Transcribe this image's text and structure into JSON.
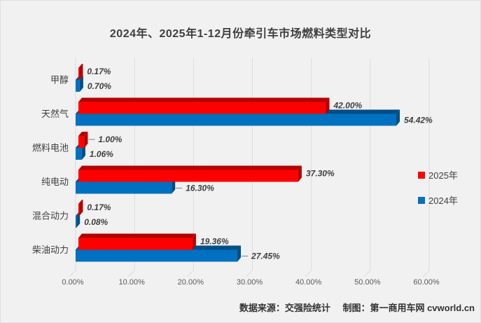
{
  "chart_data": {
    "type": "bar",
    "orientation": "horizontal",
    "style": "3d",
    "title": "2024年、2025年1-12月份牵引车市场燃料类型对比",
    "categories": [
      "甲醇",
      "天然气",
      "燃料电池",
      "纯电动",
      "混合动力",
      "柴油动力"
    ],
    "series": [
      {
        "name": "2025年",
        "color": "#fe0000",
        "dark_color": "#b50000",
        "points": [
          {
            "value": 0.17,
            "label": "0.17%",
            "leader": false
          },
          {
            "value": 42.0,
            "label": "42.00%",
            "leader": false
          },
          {
            "value": 1.0,
            "label": "1.00%",
            "leader": true
          },
          {
            "value": 37.3,
            "label": "37.30%",
            "leader": false
          },
          {
            "value": 0.17,
            "label": "0.17%",
            "leader": false
          },
          {
            "value": 19.36,
            "label": "19.36%",
            "leader": false
          }
        ]
      },
      {
        "name": "2024年",
        "color": "#0070c0",
        "dark_color": "#004e86",
        "points": [
          {
            "value": 0.7,
            "label": "0.70%",
            "leader": false
          },
          {
            "value": 54.42,
            "label": "54.42%",
            "leader": false
          },
          {
            "value": 1.06,
            "label": "1.06%",
            "leader": false
          },
          {
            "value": 16.3,
            "label": "16.30%",
            "leader": true
          },
          {
            "value": 0.08,
            "label": "0.08%",
            "leader": false
          },
          {
            "value": 27.45,
            "label": "27.45%",
            "leader": true
          }
        ]
      }
    ],
    "x_ticks": [
      "0.00%",
      "10.00%",
      "20.00%",
      "30.00%",
      "40.00%",
      "50.00%",
      "60.00%"
    ],
    "xlim": [
      0,
      60
    ],
    "grid": "vertical",
    "legend_position": "right",
    "background_color": "#f1f1f1",
    "gridline_color": "#dcdcdc",
    "text_color": "#3f3f3f",
    "tick_text_color": "#595959"
  },
  "footer": {
    "source": "数据来源：交强险统计",
    "credit": "制图：第一商用车网 cvworld.cn"
  }
}
